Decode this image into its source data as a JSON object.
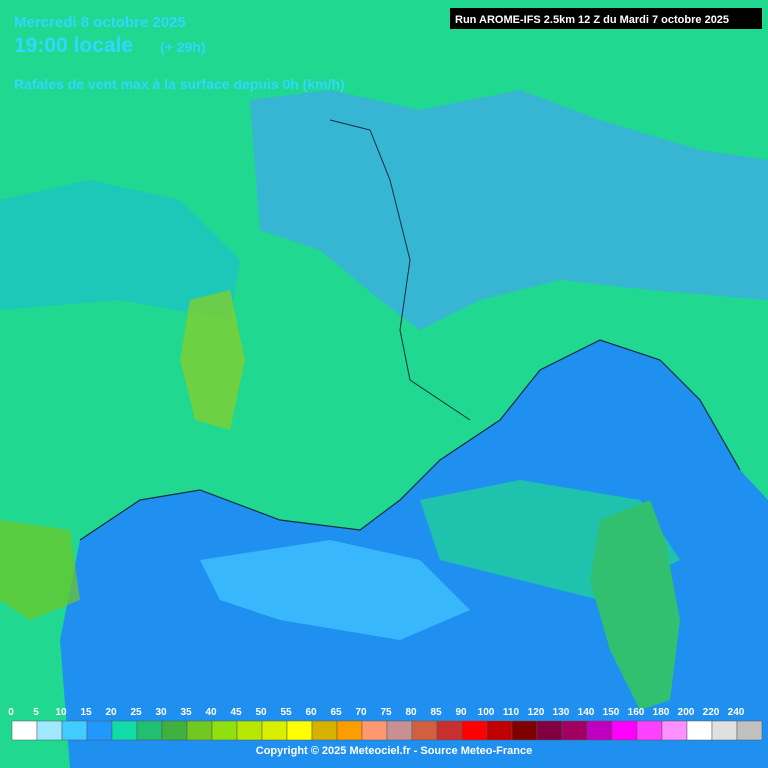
{
  "header": {
    "date": "Mercredi 8 octobre 2025",
    "time": "19:00 locale",
    "offset": "(+ 29h)",
    "parameter": "Rafales de vent max à la surface depuis 0h (km/h)"
  },
  "run_label": "Run AROME-IFS 2.5km 12 Z du Mardi 7 octobre 2025",
  "legend": {
    "values": [
      0,
      5,
      10,
      15,
      20,
      25,
      30,
      35,
      40,
      45,
      50,
      55,
      60,
      65,
      70,
      75,
      80,
      85,
      90,
      100,
      110,
      120,
      130,
      140,
      150,
      160,
      180,
      200,
      220,
      240
    ],
    "colors": [
      "#ffffff",
      "#a0e8ff",
      "#40ccff",
      "#2098ff",
      "#10dca8",
      "#20c070",
      "#40b040",
      "#70c820",
      "#90e010",
      "#b8e800",
      "#d8f000",
      "#ffff00",
      "#d8b000",
      "#ff9c00",
      "#ff9870",
      "#c89090",
      "#d06040",
      "#c83030",
      "#ff0000",
      "#c00000",
      "#800000",
      "#800040",
      "#a00060",
      "#c000c0",
      "#ff00ff",
      "#ff40ff",
      "#ff90ff",
      "#ffffff",
      "#e0e0e0",
      "#c0c0c0"
    ]
  },
  "copyright": "Copyright © 2025 Meteociel.fr - Source Meteo-France"
}
